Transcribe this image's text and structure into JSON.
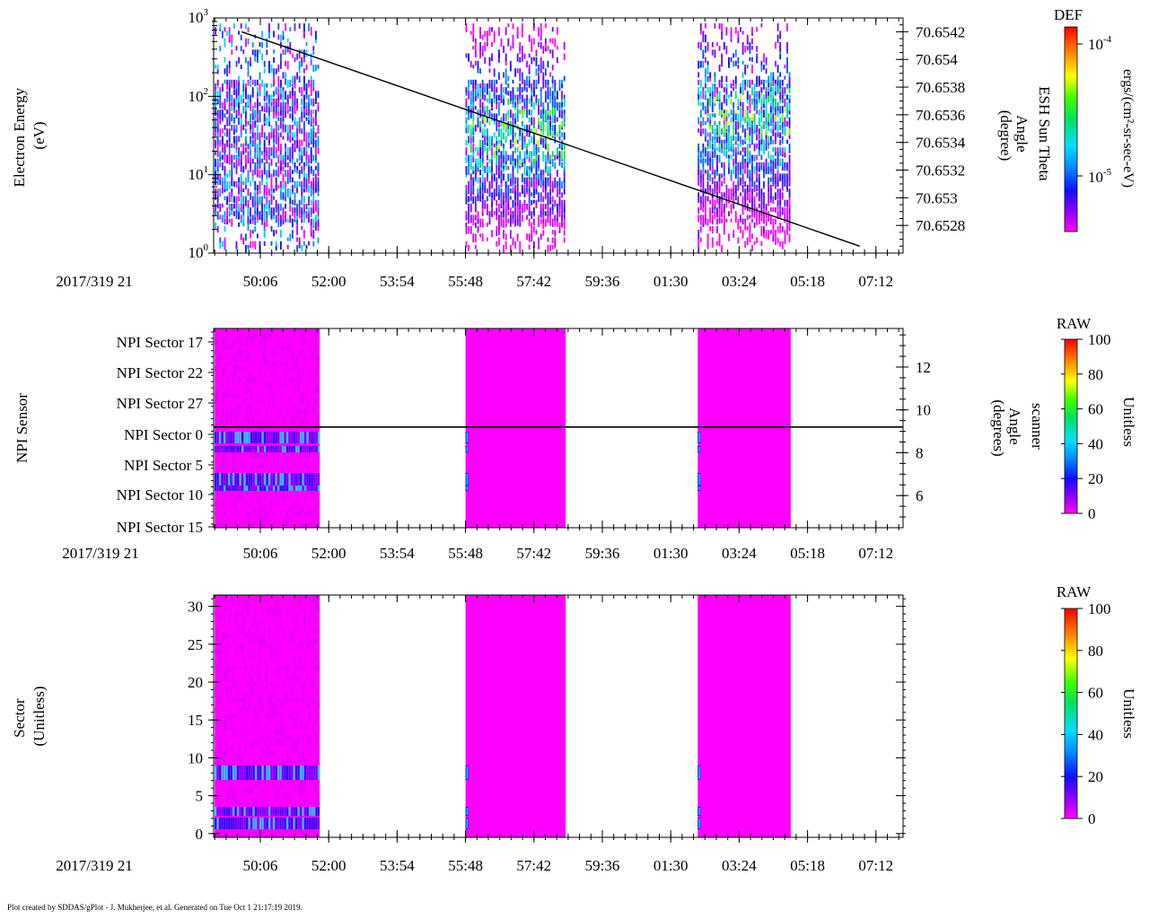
{
  "footer": "Plot created by SDDAS/gPlot - J. Mukherjee, et al.  Generated on Tue Oct 1 21:17:19 2019.",
  "time_ticks": [
    "50:06",
    "52:00",
    "53:54",
    "55:48",
    "57:42",
    "59:36",
    "01:30",
    "03:24",
    "05:18",
    "07:12"
  ],
  "chart_data": [
    {
      "type": "heatmap",
      "id": "electron-energy",
      "date_label": "2017/319 21",
      "ylabel_lines": [
        "Electron Energy",
        "(eV)"
      ],
      "yscale": "log",
      "ylim": [
        1,
        1000
      ],
      "y_ticks": [
        {
          "base": "10",
          "exp": "0",
          "value": 1
        },
        {
          "base": "10",
          "exp": "1",
          "value": 10
        },
        {
          "base": "10",
          "exp": "2",
          "value": 100
        },
        {
          "base": "10",
          "exp": "3",
          "value": 1000
        }
      ],
      "right_axis": {
        "label_lines": [
          "ESH Sun Theta",
          "Angle",
          "(degree)"
        ],
        "range": [
          70.6526,
          70.6543
        ],
        "ticks": [
          "70.6528",
          "70.653",
          "70.6532",
          "70.6534",
          "70.6536",
          "70.6538",
          "70.654",
          "70.6542"
        ]
      },
      "line": {
        "name": "ESH Sun Theta",
        "points": [
          [
            "49:35",
            70.6542
          ],
          [
            "06:45",
            70.65265
          ]
        ]
      },
      "data_blocks": [
        {
          "start": "48:50",
          "end": "51:45",
          "emin": 1.2,
          "emax": 900
        },
        {
          "start": "55:48",
          "end": "58:35",
          "emin": 1.2,
          "emax": 900
        },
        {
          "start": "02:15",
          "end": "04:50",
          "emin": 1.2,
          "emax": 900
        }
      ],
      "colorbar": {
        "title": "DEF",
        "unit": "ergs/(cm²-sr-sec-eV)",
        "ticks": [
          {
            "base": "10",
            "exp": "-4"
          },
          {
            "base": "10",
            "exp": "-5"
          }
        ]
      }
    },
    {
      "type": "heatmap",
      "id": "npi-sensor",
      "date_label": "2017/319 21",
      "ylabel_lines": [
        "NPI Sensor"
      ],
      "y_ticks": [
        "NPI Sector 17",
        "NPI Sector 22",
        "NPI Sector 27",
        "NPI Sector 0",
        "NPI Sector 5",
        "NPI Sector 10",
        "NPI Sector 15"
      ],
      "right_axis": {
        "label_lines": [
          "scanner",
          "Angle",
          "(degrees)"
        ],
        "range": [
          4.5,
          13.8
        ],
        "ticks": [
          "6",
          "8",
          "10",
          "12"
        ]
      },
      "line": {
        "name": "scanner Angle",
        "constant": 9.2
      },
      "data_blocks": [
        {
          "start": "48:50",
          "end": "51:45"
        },
        {
          "start": "55:48",
          "end": "58:35"
        },
        {
          "start": "02:15",
          "end": "04:50"
        }
      ],
      "colorbar": {
        "title": "RAW",
        "unit": "Unitless",
        "range": [
          0,
          100
        ],
        "ticks": [
          "100",
          "80",
          "60",
          "40",
          "20",
          "0"
        ]
      }
    },
    {
      "type": "heatmap",
      "id": "sector",
      "date_label": "2017/319 21",
      "ylabel_lines": [
        "Sector",
        "(Unitless)"
      ],
      "ylim": [
        -0.5,
        31.5
      ],
      "y_ticks": [
        "0",
        "5",
        "10",
        "15",
        "20",
        "25",
        "30"
      ],
      "data_blocks": [
        {
          "start": "48:50",
          "end": "51:45"
        },
        {
          "start": "55:48",
          "end": "58:35"
        },
        {
          "start": "02:15",
          "end": "04:50"
        }
      ],
      "colorbar": {
        "title": "RAW",
        "unit": "Unitless",
        "range": [
          0,
          100
        ],
        "ticks": [
          "100",
          "80",
          "60",
          "40",
          "20",
          "0"
        ]
      }
    }
  ]
}
